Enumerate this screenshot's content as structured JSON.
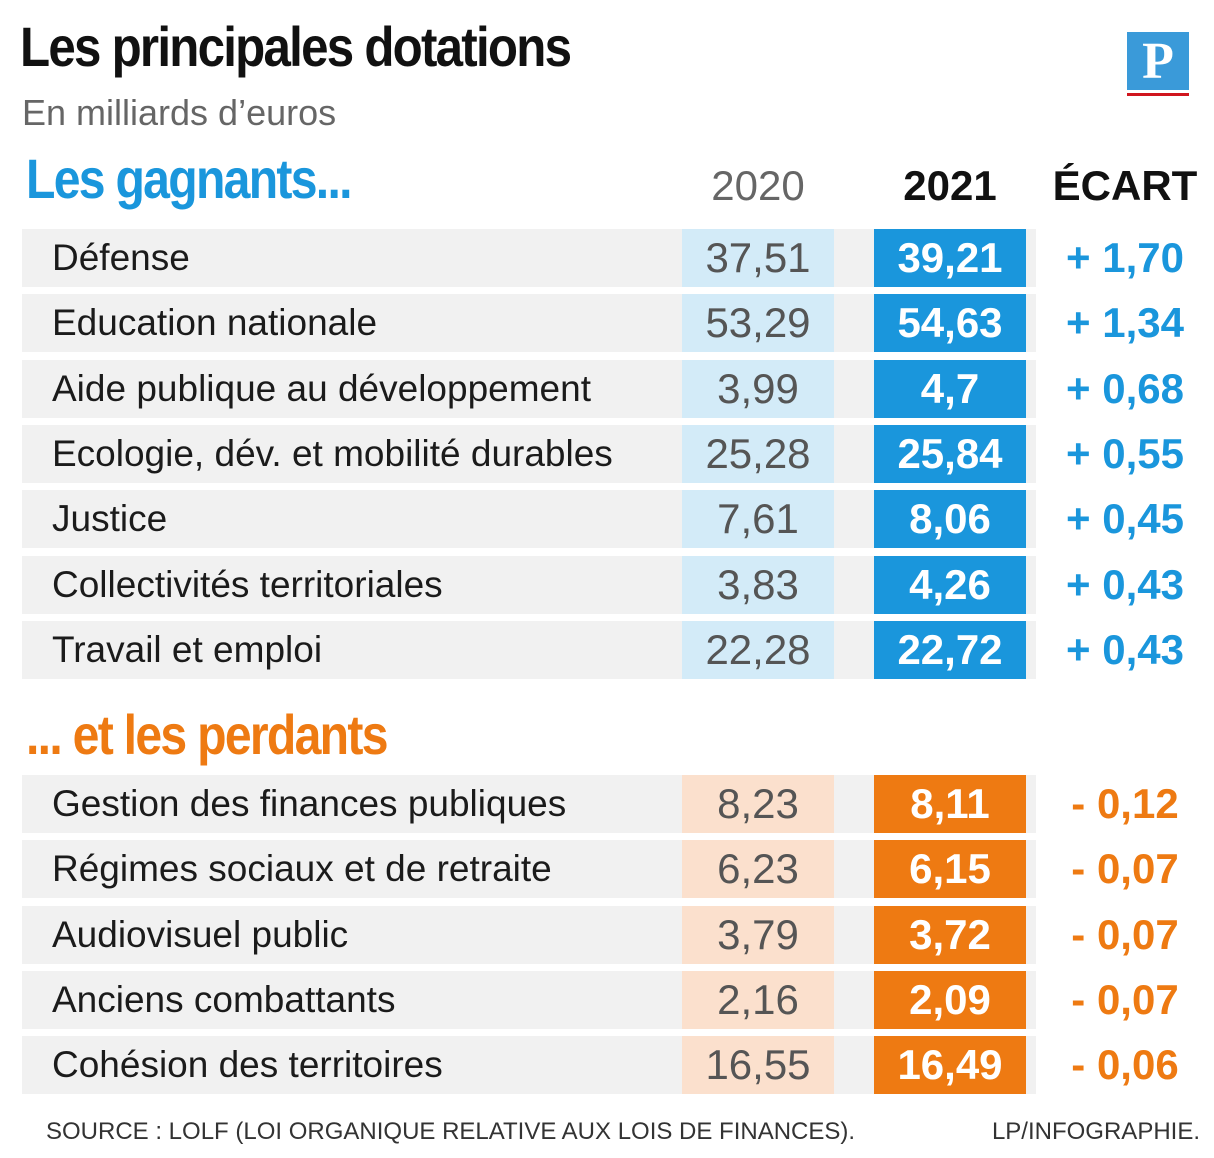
{
  "chart_data": {
    "type": "table",
    "title": "Les principales dotations",
    "subtitle": "En milliards d’euros",
    "columns": [
      "2020",
      "2021",
      "ÉCART"
    ],
    "sections": [
      {
        "title": "Les gagnants...",
        "rows": [
          {
            "label": "Défense",
            "v2020": "37,51",
            "v2021": "39,21",
            "ecart": "+ 1,70"
          },
          {
            "label": "Education nationale",
            "v2020": "53,29",
            "v2021": "54,63",
            "ecart": "+ 1,34"
          },
          {
            "label": "Aide publique au développement",
            "v2020": "3,99",
            "v2021": "4,7",
            "ecart": "+ 0,68"
          },
          {
            "label": "Ecologie, dév. et mobilité durables",
            "v2020": "25,28",
            "v2021": "25,84",
            "ecart": "+ 0,55"
          },
          {
            "label": "Justice",
            "v2020": "7,61",
            "v2021": "8,06",
            "ecart": "+ 0,45"
          },
          {
            "label": "Collectivités territoriales",
            "v2020": "3,83",
            "v2021": "4,26",
            "ecart": "+ 0,43"
          },
          {
            "label": "Travail et emploi",
            "v2020": "22,28",
            "v2021": "22,72",
            "ecart": "+ 0,43"
          }
        ]
      },
      {
        "title": "... et les perdants",
        "rows": [
          {
            "label": "Gestion des finances publiques",
            "v2020": "8,23",
            "v2021": "8,11",
            "ecart": "- 0,12"
          },
          {
            "label": "Régimes sociaux et de retraite",
            "v2020": "6,23",
            "v2021": "6,15",
            "ecart": "- 0,07"
          },
          {
            "label": "Audiovisuel public",
            "v2020": "3,79",
            "v2021": "3,72",
            "ecart": "- 0,07"
          },
          {
            "label": "Anciens combattants",
            "v2020": "2,16",
            "v2021": "2,09",
            "ecart": "- 0,07"
          },
          {
            "label": "Cohésion des territoires",
            "v2020": "16,55",
            "v2021": "16,49",
            "ecart": "- 0,06"
          }
        ]
      }
    ],
    "colors": {
      "winners": "#1a96dc",
      "winners_light": "#d3ebf8",
      "losers": "#ee7a12",
      "losers_light": "#fbe0cd"
    }
  },
  "logo_letter": "P",
  "source": "SOURCE : LOLF (LOI ORGANIQUE RELATIVE AUX LOIS DE FINANCES).",
  "credit": "LP/INFOGRAPHIE."
}
